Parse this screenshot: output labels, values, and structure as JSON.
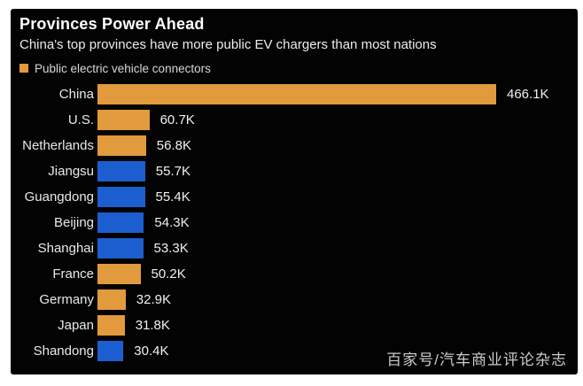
{
  "page": {
    "background": "#ffffff",
    "panel_background": "#030303"
  },
  "header": {
    "title": "Provinces Power Ahead",
    "subtitle": "China's top provinces have more public EV chargers than most nations"
  },
  "legend": {
    "label": "Public electric vehicle connectors",
    "swatch_color": "#e19a3c"
  },
  "colors": {
    "orange": "#e19a3c",
    "blue": "#1c5ecf"
  },
  "watermark": "百家号/汽车商业评论杂志",
  "chart_data": {
    "type": "bar",
    "orientation": "horizontal",
    "title": "Provinces Power Ahead",
    "subtitle": "China's top provinces have more public EV chargers than most nations",
    "legend_entries": [
      "Public electric vehicle connectors"
    ],
    "legend_position": "top-left",
    "grid": false,
    "categories": [
      "China",
      "U.S.",
      "Netherlands",
      "Jiangsu",
      "Guangdong",
      "Beijing",
      "Shanghai",
      "France",
      "Germany",
      "Japan",
      "Shandong"
    ],
    "values_thousands": [
      466.1,
      60.7,
      56.8,
      55.7,
      55.4,
      54.3,
      53.3,
      50.2,
      32.9,
      31.8,
      30.4
    ],
    "value_labels": [
      "466.1K",
      "60.7K",
      "56.8K",
      "55.7K",
      "55.4K",
      "54.3K",
      "53.3K",
      "50.2K",
      "32.9K",
      "31.8K",
      "30.4K"
    ],
    "bar_colors": [
      "orange",
      "orange",
      "orange",
      "blue",
      "blue",
      "blue",
      "blue",
      "orange",
      "orange",
      "orange",
      "blue"
    ],
    "xlim_thousands": [
      0,
      466.1
    ]
  }
}
